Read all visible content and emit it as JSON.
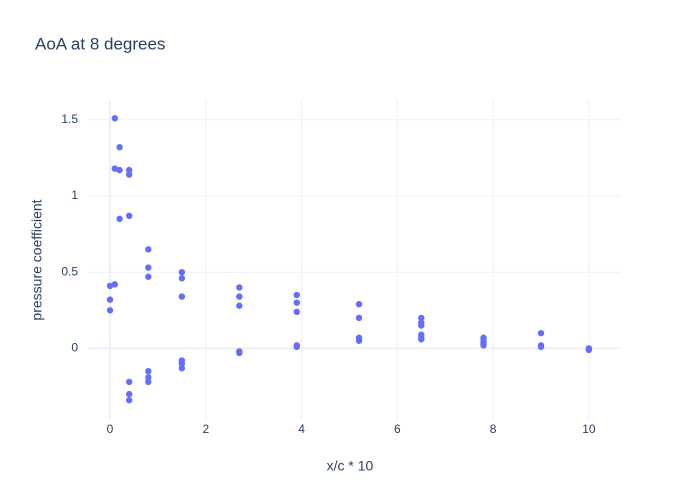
{
  "chart_data": {
    "type": "scatter",
    "title": "AoA at 8 degrees",
    "x_label": "x/c * 10",
    "y_label": "pressure coefficient",
    "color": "#636efa",
    "grid": true,
    "xlim": [
      -0.46,
      10.65
    ],
    "ylim": [
      -0.47,
      1.63
    ],
    "xticks": [
      0,
      2,
      4,
      6,
      8,
      10
    ],
    "yticks": [
      0,
      0.5,
      1,
      1.5
    ],
    "x": [
      0,
      0,
      0,
      0.1,
      0.1,
      0.1,
      0.2,
      0.2,
      0.2,
      0.4,
      0.4,
      0.4,
      0.4,
      0.4,
      0.4,
      0.8,
      0.8,
      0.8,
      0.8,
      0.8,
      0.8,
      1.5,
      1.5,
      1.5,
      1.5,
      1.5,
      1.5,
      2.7,
      2.7,
      2.7,
      2.7,
      2.7,
      3.9,
      3.9,
      3.9,
      3.9,
      3.9,
      5.2,
      5.2,
      5.2,
      5.2,
      6.5,
      6.5,
      6.5,
      6.5,
      6.5,
      6.5,
      7.8,
      7.8,
      7.8,
      7.8,
      7.8,
      9,
      9,
      9,
      10,
      10
    ],
    "values": [
      0.41,
      0.32,
      0.25,
      1.51,
      1.18,
      0.42,
      1.32,
      1.17,
      0.85,
      1.17,
      1.14,
      0.87,
      -0.22,
      -0.3,
      -0.34,
      0.65,
      0.53,
      0.47,
      -0.15,
      -0.19,
      -0.22,
      0.5,
      0.46,
      0.34,
      -0.08,
      -0.1,
      -0.13,
      0.4,
      0.34,
      0.28,
      -0.02,
      -0.03,
      0.35,
      0.3,
      0.24,
      0.02,
      0.01,
      0.29,
      0.2,
      0.07,
      0.05,
      0.2,
      0.17,
      0.15,
      0.09,
      0.07,
      0.06,
      0.07,
      0.06,
      0.04,
      0.03,
      0.02,
      0.1,
      0.02,
      0.01,
      0,
      -0.01
    ]
  }
}
